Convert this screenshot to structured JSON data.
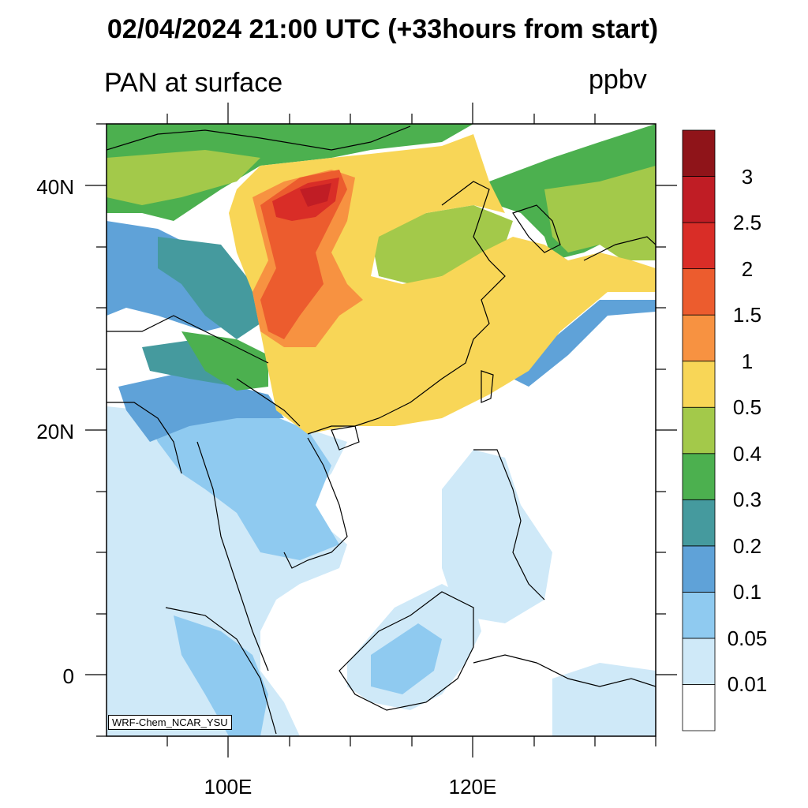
{
  "title": "02/04/2024 21:00 UTC (+33hours from start)",
  "subtitle": "PAN at surface",
  "units": "ppbv",
  "watermark": "WRF-Chem_NCAR_YSU",
  "axes": {
    "lat_ticks": [
      {
        "value": 40,
        "label": "40N"
      },
      {
        "value": 20,
        "label": "20N"
      },
      {
        "value": 0,
        "label": "0"
      }
    ],
    "lon_ticks": [
      {
        "value": 100,
        "label": "100E"
      },
      {
        "value": 120,
        "label": "120E"
      }
    ],
    "lat_range": [
      -5,
      45
    ],
    "lon_range": [
      90,
      135
    ]
  },
  "colorbar": {
    "colors": [
      "#ffffff",
      "#cfe9f8",
      "#8fcaf0",
      "#5fa2d8",
      "#459a9e",
      "#4cb04f",
      "#a3c94a",
      "#f8d657",
      "#f79241",
      "#ec5c2e",
      "#d92d27",
      "#c01d25",
      "#8f1419"
    ],
    "labels": [
      "0.01",
      "0.05",
      "0.1",
      "0.2",
      "0.3",
      "0.4",
      "0.5",
      "1",
      "1.5",
      "2",
      "2.5",
      "3"
    ]
  }
}
